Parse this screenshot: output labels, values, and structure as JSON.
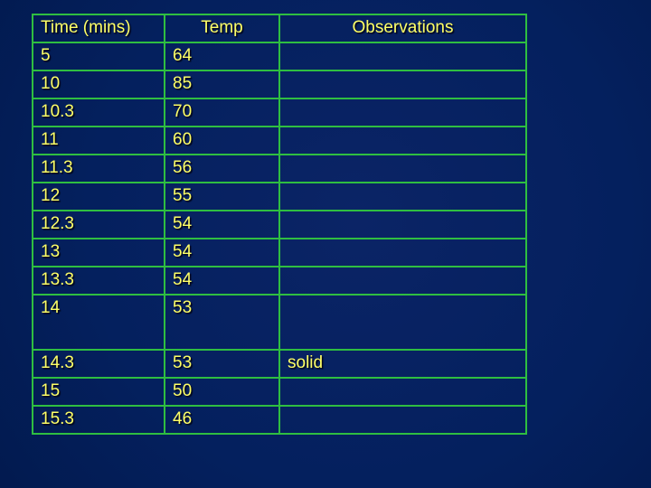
{
  "slide": {
    "background_color": "#04205e",
    "table_border_color": "#2fbe41",
    "text_color": "#ffff66"
  },
  "chart_data": {
    "type": "table",
    "columns": [
      "Time (mins)",
      "Temp",
      "Observations"
    ],
    "rows": [
      [
        "5",
        "64",
        ""
      ],
      [
        "10",
        "85",
        ""
      ],
      [
        "10.3",
        "70",
        ""
      ],
      [
        "11",
        "60",
        ""
      ],
      [
        "11.3",
        "56",
        ""
      ],
      [
        "12",
        "55",
        ""
      ],
      [
        "12.3",
        "54",
        ""
      ],
      [
        "13",
        "54",
        ""
      ],
      [
        "13.3",
        "54",
        ""
      ],
      [
        "14",
        "53",
        ""
      ],
      [
        "14.3",
        "53",
        "solid"
      ],
      [
        "15",
        "50",
        ""
      ],
      [
        "15.3",
        "46",
        ""
      ]
    ]
  }
}
